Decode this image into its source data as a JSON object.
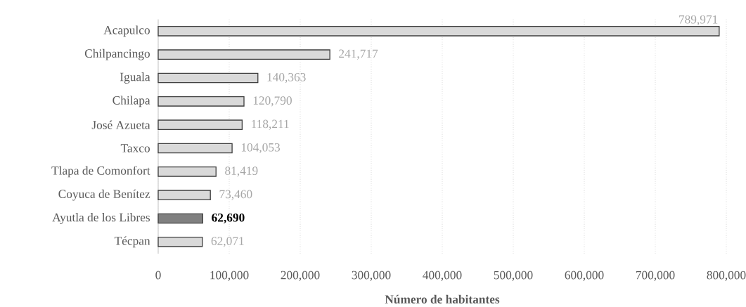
{
  "chart_data": {
    "type": "bar",
    "orientation": "horizontal",
    "xlabel": "Número de habitantes",
    "categories": [
      "Acapulco",
      "Chilpancingo",
      "Iguala",
      "Chilapa",
      "José Azueta",
      "Taxco",
      "Tlapa de Comonfort",
      "Coyuca de Benítez",
      "Ayutla de los Libres",
      "Técpan"
    ],
    "values": [
      789971,
      241717,
      140363,
      120790,
      118211,
      104053,
      81419,
      73460,
      62690,
      62071
    ],
    "value_labels": [
      "789,971",
      "241,717",
      "140,363",
      "120,790",
      "118,211",
      "104,053",
      "81,419",
      "73,460",
      "62,690",
      "62,071"
    ],
    "colors": [
      "#d9d9d9",
      "#d9d9d9",
      "#d9d9d9",
      "#d9d9d9",
      "#d9d9d9",
      "#d9d9d9",
      "#d9d9d9",
      "#d9d9d9",
      "#808080",
      "#d9d9d9"
    ],
    "xlim": [
      0,
      800000
    ],
    "xticks": [
      0,
      {
        "value": 100000,
        "label": "100,000"
      },
      {
        "value": 200000,
        "label": "200,000"
      },
      {
        "value": 300000,
        "label": "300,000"
      },
      {
        "value": 400000,
        "label": "400,000"
      },
      {
        "value": 500000,
        "label": "500,000"
      },
      {
        "value": 600000,
        "label": "600,000"
      },
      {
        "value": 700000,
        "label": "700,000"
      },
      {
        "value": 800000,
        "label": "800,000"
      }
    ],
    "grid": "x"
  }
}
